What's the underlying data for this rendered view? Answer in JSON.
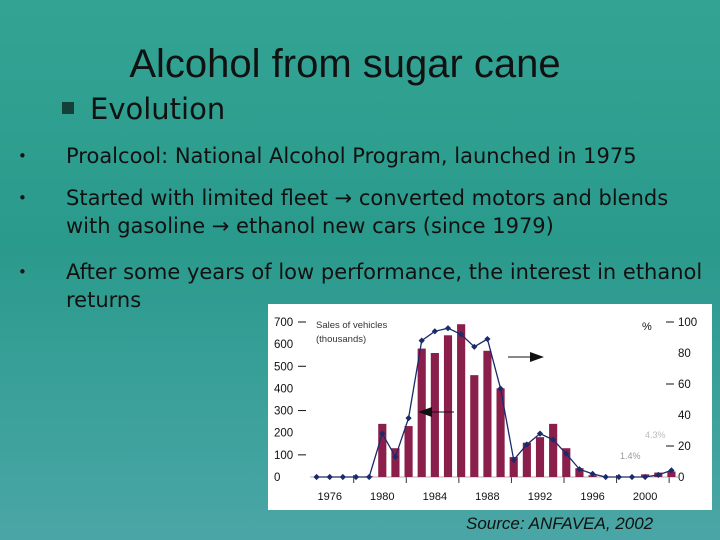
{
  "slide": {
    "title": "Alcohol from sugar cane",
    "subhead": "Evolution",
    "bullets": [
      "Proalcool: National Alcohol Program, launched in 1975",
      "Started with limited fleet → converted motors and blends with gasoline → ethanol new cars (since 1979)",
      "After some years of low performance, the interest in ethanol returns"
    ],
    "bullet_marker": "•",
    "source": "Source: ANFAVEA, 2002"
  },
  "chart_data": {
    "type": "bar",
    "title": "",
    "legend": {
      "bars_label": "Sales of vehicles (thousands)",
      "line_label": "%"
    },
    "x": [
      1975,
      1976,
      1977,
      1978,
      1979,
      1980,
      1981,
      1982,
      1983,
      1984,
      1985,
      1986,
      1987,
      1988,
      1989,
      1990,
      1991,
      1992,
      1993,
      1994,
      1995,
      1996,
      1997,
      1998,
      1999,
      2000,
      2001,
      2002
    ],
    "x_ticks": [
      "1976",
      "1980",
      "1984",
      "1988",
      "1992",
      "1996",
      "2000"
    ],
    "x_tick_values": [
      1976,
      1980,
      1984,
      1988,
      1992,
      1996,
      2000
    ],
    "y_left_ticks": [
      "0",
      "100",
      "200",
      "300",
      "400",
      "500",
      "600",
      "700"
    ],
    "y_left_tick_values": [
      0,
      100,
      200,
      300,
      400,
      500,
      600,
      700
    ],
    "y_right_ticks": [
      "0",
      "20",
      "40",
      "60",
      "80",
      "100"
    ],
    "y_right_tick_values": [
      0,
      20,
      40,
      60,
      80,
      100
    ],
    "ylim_left": [
      0,
      700
    ],
    "ylim_right": [
      0,
      100
    ],
    "series": [
      {
        "name": "Sales of vehicles (thousands)",
        "type": "bar",
        "axis": "left",
        "values": [
          0,
          0,
          0,
          0,
          3,
          240,
          130,
          230,
          580,
          560,
          640,
          690,
          460,
          570,
          400,
          90,
          155,
          180,
          240,
          130,
          40,
          8,
          2,
          1,
          2,
          12,
          20,
          25
        ]
      },
      {
        "name": "%",
        "type": "line",
        "axis": "right",
        "values": [
          0,
          0,
          0,
          0,
          0,
          28,
          13,
          38,
          88,
          94,
          96,
          92,
          84,
          89,
          57,
          11,
          21,
          28,
          24,
          15,
          5,
          2,
          0,
          0,
          0,
          0,
          1.4,
          4.3
        ]
      }
    ],
    "annotations": [
      "1.4%",
      "4.3%"
    ],
    "colors": {
      "bar": "#8b1f4b",
      "line": "#1a2a6a"
    }
  }
}
